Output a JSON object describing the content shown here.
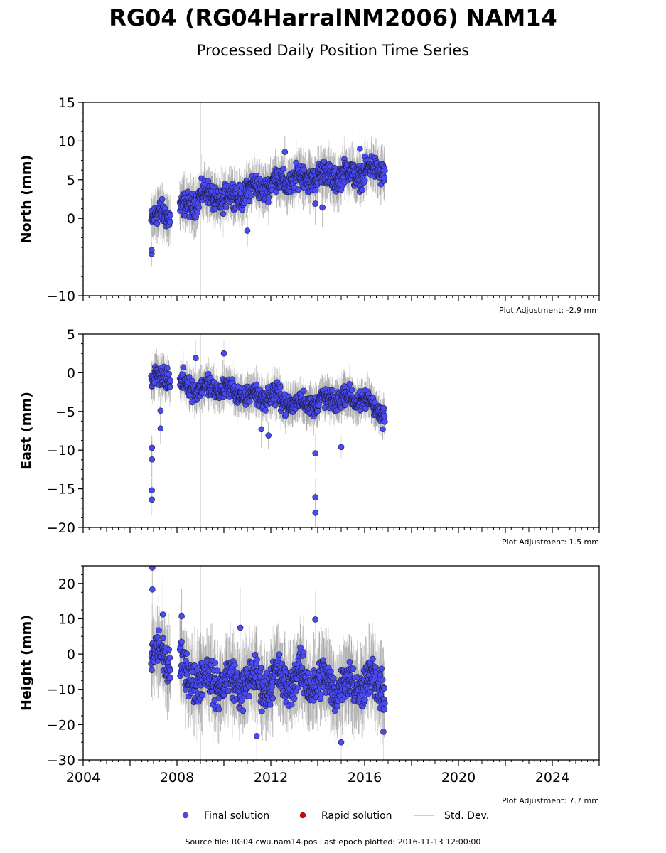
{
  "title": "RG04 (RG04HarralNM2006) NAM14",
  "subtitle": "Processed Daily Position Time Series",
  "footer": "Source file: RG04.cwu.nam14.pos  Last epoch plotted: 2016-11-13 12:00:00",
  "legend": [
    {
      "label": "Final solution",
      "kind": "dot",
      "color": "#4a4af2"
    },
    {
      "label": "Rapid solution",
      "kind": "dot",
      "color": "#e00000"
    },
    {
      "label": "Std. Dev.",
      "kind": "line",
      "color": "#cccccc"
    }
  ],
  "chart_data": {
    "type": "scatter",
    "x_range": [
      2004,
      2026
    ],
    "x_ticks": [
      "2004",
      "2008",
      "2012",
      "2016",
      "2020",
      "2024"
    ],
    "reference_line_x": 2009.0,
    "marker_color": "#4a4af2",
    "errorbar_color": "#cccccc",
    "panels": [
      {
        "ylabel": "North (mm)",
        "ylim": [
          -10,
          15
        ],
        "y_ticks": [
          "15",
          "10",
          "5",
          "0",
          "−10"
        ],
        "y_tick_values": [
          15,
          10,
          5,
          0,
          -10
        ],
        "adjustment": "Plot Adjustment: -2.9 mm",
        "trend": [
          [
            2006.9,
            0.0
          ],
          [
            2007.6,
            0.5
          ],
          [
            2008.2,
            1.0
          ],
          [
            2009.0,
            3.0
          ],
          [
            2010.0,
            2.5
          ],
          [
            2011.0,
            3.5
          ],
          [
            2012.0,
            4.5
          ],
          [
            2013.0,
            5.0
          ],
          [
            2014.0,
            5.5
          ],
          [
            2015.0,
            5.5
          ],
          [
            2016.0,
            6.0
          ],
          [
            2016.87,
            6.5
          ]
        ],
        "noise": 1.3,
        "outliers": [
          [
            2006.92,
            -4.6
          ],
          [
            2006.92,
            -4.1
          ],
          [
            2011.0,
            -1.6
          ],
          [
            2012.6,
            8.6
          ],
          [
            2013.9,
            1.9
          ],
          [
            2014.2,
            1.4
          ],
          [
            2015.8,
            9.0
          ]
        ]
      },
      {
        "ylabel": "East (mm)",
        "ylim": [
          -20,
          5
        ],
        "y_ticks": [
          "5",
          "0",
          "−5",
          "−10",
          "−15",
          "−20"
        ],
        "y_tick_values": [
          5,
          0,
          -5,
          -10,
          -15,
          -20
        ],
        "adjustment": "Plot Adjustment: 1.5 mm",
        "trend": [
          [
            2006.9,
            -0.5
          ],
          [
            2007.6,
            -0.8
          ],
          [
            2008.2,
            -1.5
          ],
          [
            2009.0,
            -2.0
          ],
          [
            2010.0,
            -2.0
          ],
          [
            2011.0,
            -3.0
          ],
          [
            2012.0,
            -3.0
          ],
          [
            2013.0,
            -4.0
          ],
          [
            2014.0,
            -3.8
          ],
          [
            2015.0,
            -3.2
          ],
          [
            2016.0,
            -3.5
          ],
          [
            2016.87,
            -5.5
          ]
        ],
        "noise": 1.1,
        "outliers": [
          [
            2006.93,
            -9.7
          ],
          [
            2006.93,
            -11.2
          ],
          [
            2006.93,
            -15.2
          ],
          [
            2006.93,
            -16.4
          ],
          [
            2007.3,
            -4.9
          ],
          [
            2007.3,
            -7.2
          ],
          [
            2008.8,
            1.9
          ],
          [
            2010.0,
            2.5
          ],
          [
            2011.6,
            -7.3
          ],
          [
            2011.9,
            -8.1
          ],
          [
            2013.9,
            -10.4
          ],
          [
            2013.9,
            -16.1
          ],
          [
            2013.9,
            -18.1
          ],
          [
            2015.0,
            -9.6
          ]
        ]
      },
      {
        "ylabel": "Height (mm)",
        "ylim": [
          -30,
          25
        ],
        "y_ticks": [
          "20",
          "10",
          "0",
          "−10",
          "−20",
          "−30"
        ],
        "y_tick_values": [
          20,
          10,
          0,
          -10,
          -20,
          -30
        ],
        "adjustment": "Plot Adjustment: 7.7 mm",
        "trend": [
          [
            2006.9,
            0.0
          ],
          [
            2007.6,
            -2.0
          ],
          [
            2008.2,
            -5.0
          ],
          [
            2009.0,
            -7.0
          ],
          [
            2010.0,
            -8.0
          ],
          [
            2011.0,
            -8.0
          ],
          [
            2012.0,
            -8.0
          ],
          [
            2013.0,
            -7.0
          ],
          [
            2014.0,
            -8.0
          ],
          [
            2015.0,
            -9.0
          ],
          [
            2016.0,
            -8.0
          ],
          [
            2016.87,
            -9.0
          ]
        ],
        "noise": 4.8,
        "outliers": [
          [
            2006.95,
            24.5
          ],
          [
            2006.95,
            18.3
          ],
          [
            2007.4,
            11.2
          ],
          [
            2008.2,
            10.7
          ],
          [
            2010.7,
            7.5
          ],
          [
            2013.9,
            9.8
          ],
          [
            2015.0,
            -25.0
          ],
          [
            2016.8,
            -22.0
          ],
          [
            2011.4,
            -23.2
          ]
        ]
      }
    ]
  }
}
